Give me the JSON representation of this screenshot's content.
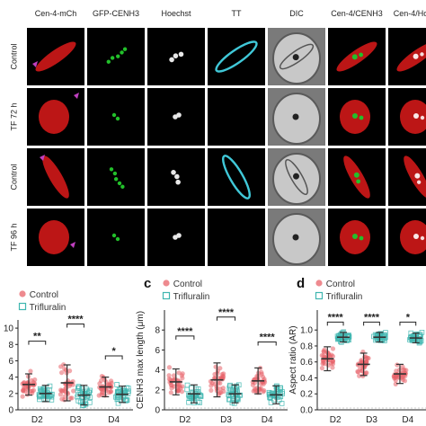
{
  "micrograph": {
    "columns": [
      "Cen-4-mCh",
      "GFP-CENH3",
      "Hoechst",
      "TT",
      "DIC",
      "Cen-4/CENH3",
      "Cen-4/Ho"
    ],
    "rows": [
      "Control",
      "TF 72 h",
      "Control",
      "TF 96 h"
    ]
  },
  "legend": {
    "control": "Control",
    "trifluralin": "Trifluralin"
  },
  "colors": {
    "control": "#e8636a",
    "trifluralin": "#3fb6b0",
    "mcherry": "#d01818",
    "gfp": "#22c02a",
    "cyan": "#40c8d8",
    "arrow": "#c040c0"
  },
  "panels": {
    "c": "c",
    "d": "d"
  },
  "chart_data": [
    {
      "type": "scatter",
      "panel": "",
      "categories": [
        "D2",
        "D3",
        "D4"
      ],
      "ylim": [
        0,
        11
      ],
      "yticks": [
        "0",
        "2",
        "4",
        "6",
        "8",
        "10"
      ],
      "ylabel": "",
      "series": [
        {
          "name": "Control",
          "means": [
            3.1,
            3.3,
            2.8
          ],
          "sd": [
            1.3,
            2.2,
            1.2
          ]
        },
        {
          "name": "Trifluralin",
          "means": [
            2.0,
            1.8,
            1.9
          ],
          "sd": [
            1.0,
            1.2,
            1.0
          ]
        }
      ],
      "significance": [
        "**",
        "****",
        "*"
      ]
    },
    {
      "type": "scatter",
      "panel": "c",
      "categories": [
        "D2",
        "D3",
        "D4"
      ],
      "ylim": [
        0,
        10
      ],
      "yticks": [
        "0",
        "2",
        "4",
        "6",
        "8"
      ],
      "ylabel": "CENH3 max length (μm)",
      "series": [
        {
          "name": "Control",
          "means": [
            2.8,
            3.0,
            2.9
          ],
          "sd": [
            1.3,
            1.7,
            1.3
          ]
        },
        {
          "name": "Trifluralin",
          "means": [
            1.6,
            1.6,
            1.5
          ],
          "sd": [
            0.9,
            0.9,
            0.9
          ]
        }
      ],
      "significance": [
        "****",
        "****",
        "****"
      ]
    },
    {
      "type": "scatter",
      "panel": "d",
      "categories": [
        "D2",
        "D3",
        "D4"
      ],
      "ylim": [
        0,
        1.25
      ],
      "yticks": [
        "0.0",
        "0.2",
        "0.4",
        "0.6",
        "0.8",
        "1.0"
      ],
      "ylabel": "Aspect ratio (AR)",
      "series": [
        {
          "name": "Control",
          "means": [
            0.64,
            0.57,
            0.45
          ],
          "sd": [
            0.15,
            0.14,
            0.12
          ]
        },
        {
          "name": "Trifluralin",
          "means": [
            0.91,
            0.91,
            0.9
          ],
          "sd": [
            0.06,
            0.06,
            0.06
          ]
        }
      ],
      "significance": [
        "****",
        "****",
        "*"
      ]
    }
  ]
}
